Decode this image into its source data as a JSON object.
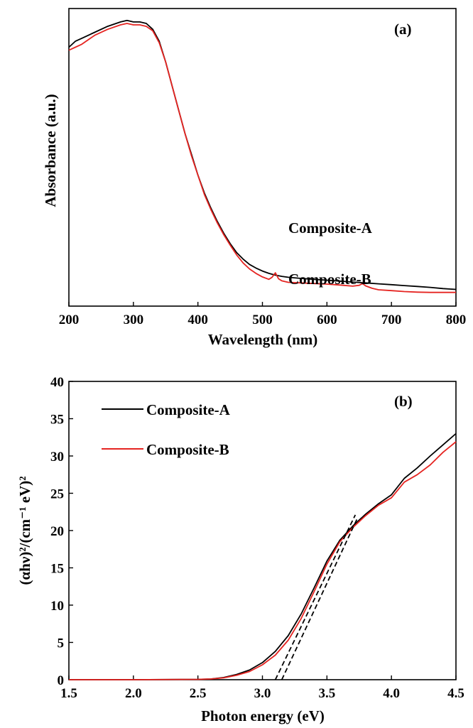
{
  "chart_data": [
    {
      "type": "line",
      "panel_label": "(a)",
      "xlabel": "Wavelength (nm)",
      "ylabel": "Absorbance (a.u.)",
      "xlim": [
        200,
        800
      ],
      "ylim": [
        0,
        1
      ],
      "x_ticks": [
        200,
        300,
        400,
        500,
        600,
        700,
        800
      ],
      "y_ticks_shown": false,
      "series": [
        {
          "name": "Composite-A",
          "color": "#000000",
          "x": [
            200,
            210,
            220,
            240,
            260,
            280,
            290,
            300,
            310,
            320,
            330,
            340,
            350,
            360,
            370,
            380,
            390,
            400,
            410,
            420,
            430,
            440,
            450,
            460,
            470,
            480,
            490,
            500,
            510,
            520,
            530,
            540,
            560,
            580,
            600,
            620,
            640,
            660,
            680,
            700,
            720,
            740,
            760,
            780,
            800
          ],
          "y": [
            0.87,
            0.89,
            0.9,
            0.92,
            0.94,
            0.955,
            0.96,
            0.955,
            0.955,
            0.95,
            0.93,
            0.89,
            0.82,
            0.74,
            0.66,
            0.58,
            0.51,
            0.44,
            0.38,
            0.33,
            0.285,
            0.245,
            0.21,
            0.18,
            0.158,
            0.14,
            0.128,
            0.118,
            0.11,
            0.104,
            0.1,
            0.097,
            0.093,
            0.09,
            0.087,
            0.084,
            0.081,
            0.078,
            0.075,
            0.072,
            0.069,
            0.066,
            0.063,
            0.059,
            0.056
          ]
        },
        {
          "name": "Composite-B",
          "color": "#e52421",
          "x": [
            200,
            210,
            220,
            240,
            260,
            280,
            290,
            300,
            310,
            320,
            330,
            340,
            350,
            360,
            370,
            380,
            390,
            400,
            410,
            420,
            430,
            440,
            450,
            460,
            470,
            480,
            490,
            500,
            510,
            515,
            520,
            525,
            530,
            540,
            560,
            580,
            600,
            620,
            640,
            650,
            655,
            660,
            670,
            680,
            700,
            720,
            740,
            760,
            780,
            800
          ],
          "y": [
            0.86,
            0.87,
            0.88,
            0.91,
            0.93,
            0.945,
            0.95,
            0.945,
            0.945,
            0.94,
            0.925,
            0.885,
            0.82,
            0.74,
            0.66,
            0.58,
            0.505,
            0.44,
            0.375,
            0.325,
            0.28,
            0.24,
            0.205,
            0.172,
            0.145,
            0.125,
            0.11,
            0.098,
            0.09,
            0.097,
            0.112,
            0.092,
            0.085,
            0.08,
            0.078,
            0.076,
            0.074,
            0.071,
            0.067,
            0.07,
            0.076,
            0.068,
            0.06,
            0.055,
            0.052,
            0.049,
            0.047,
            0.046,
            0.046,
            0.046
          ]
        }
      ],
      "annotations": [
        {
          "text": "Composite-A",
          "x": 490,
          "y": 0.19
        },
        {
          "text": "Composite-B",
          "x": 490,
          "y": 0.04
        }
      ]
    },
    {
      "type": "line",
      "panel_label": "(b)",
      "xlabel": "Photon energy (eV)",
      "ylabel": "(αhν)²/(cm⁻¹ eV)²",
      "xlim": [
        1.5,
        4.5
      ],
      "ylim": [
        0,
        40
      ],
      "x_ticks": [
        1.5,
        2.0,
        2.5,
        3.0,
        3.5,
        4.0,
        4.5
      ],
      "x_tick_labels": [
        "1.5",
        "2.0",
        "2.5",
        "3.0",
        "3.5",
        "4.0",
        "4.5"
      ],
      "y_ticks": [
        0,
        5,
        10,
        15,
        20,
        25,
        30,
        35,
        40
      ],
      "legend_position": "top-left",
      "series": [
        {
          "name": "Composite-A",
          "color": "#000000",
          "x": [
            1.5,
            2.0,
            2.5,
            2.6,
            2.7,
            2.8,
            2.9,
            3.0,
            3.1,
            3.2,
            3.3,
            3.4,
            3.5,
            3.6,
            3.7,
            3.8,
            3.9,
            4.0,
            4.1,
            4.2,
            4.3,
            4.4,
            4.5
          ],
          "y": [
            0,
            0,
            0.05,
            0.1,
            0.3,
            0.7,
            1.3,
            2.3,
            3.8,
            5.9,
            8.8,
            12.3,
            15.9,
            18.7,
            20.6,
            22.2,
            23.6,
            24.8,
            27.0,
            28.4,
            30.0,
            31.5,
            33.0
          ]
        },
        {
          "name": "Composite-B",
          "color": "#e52421",
          "x": [
            1.5,
            2.0,
            2.5,
            2.6,
            2.7,
            2.8,
            2.9,
            3.0,
            3.1,
            3.2,
            3.3,
            3.4,
            3.5,
            3.6,
            3.7,
            3.8,
            3.9,
            4.0,
            4.1,
            4.2,
            4.3,
            4.4,
            4.5
          ],
          "y": [
            0,
            0,
            0.05,
            0.1,
            0.25,
            0.6,
            1.1,
            2.0,
            3.3,
            5.3,
            8.2,
            11.8,
            15.5,
            18.5,
            20.4,
            22.0,
            23.4,
            24.4,
            26.5,
            27.5,
            28.8,
            30.5,
            31.9
          ]
        }
      ],
      "tangent_lines": [
        {
          "color": "#000000",
          "x": [
            3.1,
            3.72
          ],
          "y": [
            0,
            22.1
          ]
        },
        {
          "color": "#000000",
          "x": [
            3.15,
            3.74
          ],
          "y": [
            0,
            21.8
          ]
        }
      ]
    }
  ]
}
